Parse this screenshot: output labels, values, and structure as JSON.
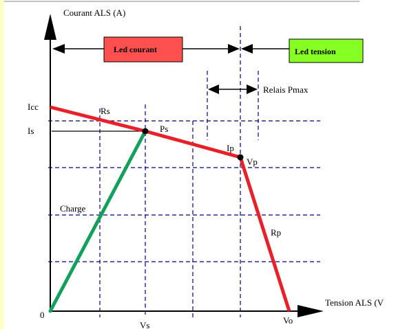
{
  "colors": {
    "left_strip": "#ffffc8",
    "top_rule": "#c0c0c0",
    "source_curve": "#e8202a",
    "load_line": "#12a05a",
    "led_courant_fill": "#ff5050",
    "led_tension_fill": "#88ff22",
    "axes": "#000000",
    "grid": "#000080"
  },
  "labels": {
    "y_axis": "Courant ALS (A)",
    "x_axis": "Tension ALS (V",
    "origin": "0",
    "icc": "Icc",
    "is": "Is",
    "rs": "Rs",
    "ps": "Ps",
    "ip": "Ip",
    "vp": "Vp",
    "charge": "Charge",
    "rp": "Rp",
    "vs": "Vs",
    "vo": "Vo",
    "relais": "Relais Pmax",
    "led_courant": "Led courant",
    "led_tension": "Led tension"
  },
  "icons": {
    "axis_arrows": "filled-triangle-arrow",
    "range_arrows": "double-headed-arrow"
  }
}
